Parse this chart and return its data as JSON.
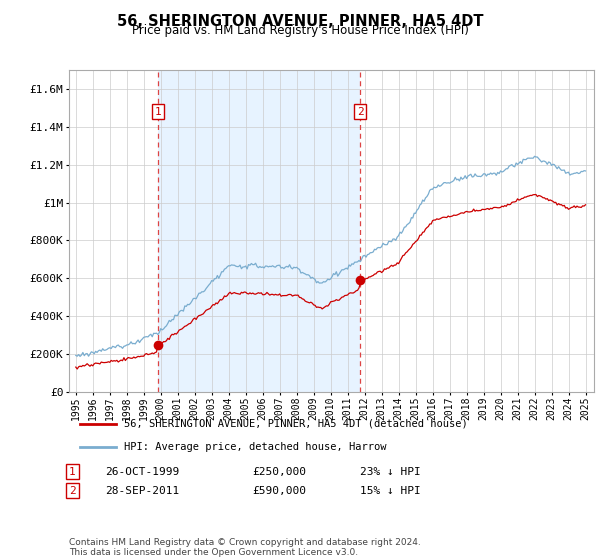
{
  "title": "56, SHERINGTON AVENUE, PINNER, HA5 4DT",
  "subtitle": "Price paid vs. HM Land Registry's House Price Index (HPI)",
  "ylim": [
    0,
    1700000
  ],
  "yticks": [
    0,
    200000,
    400000,
    600000,
    800000,
    1000000,
    1200000,
    1400000,
    1600000
  ],
  "red_color": "#cc0000",
  "blue_color": "#7aadcf",
  "shade_color": "#ddeeff",
  "marker1_year": 1999.82,
  "marker1_value": 250000,
  "marker2_year": 2011.74,
  "marker2_value": 590000,
  "vline1_year": 1999.82,
  "vline2_year": 2011.74,
  "legend_label_red": "56, SHERINGTON AVENUE, PINNER, HA5 4DT (detached house)",
  "legend_label_blue": "HPI: Average price, detached house, Harrow",
  "footer": "Contains HM Land Registry data © Crown copyright and database right 2024.\nThis data is licensed under the Open Government Licence v3.0.",
  "xmin": 1994.6,
  "xmax": 2025.5
}
